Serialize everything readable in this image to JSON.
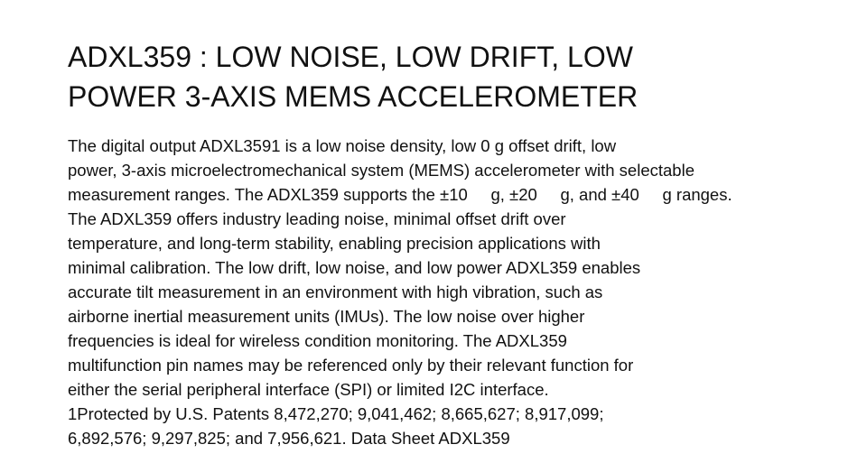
{
  "document": {
    "title_lines": [
      "ADXL359 : LOW NOISE, LOW DRIFT, LOW",
      "POWER 3-AXIS MEMS ACCELEROMETER"
    ],
    "body_lines": [
      "The digital output ADXL3591 is a low noise density, low 0 g offset drift, low",
      "power, 3-axis microelectromechanical system (MEMS) accelerometer with selectable",
      "measurement ranges. The ADXL359 supports the ±10     g, ±20     g, and ±40     g ranges.",
      "The ADXL359 offers industry leading noise, minimal offset drift over",
      "temperature, and long-term stability, enabling precision applications with",
      "minimal calibration. The low drift, low noise, and low power ADXL359 enables",
      "accurate tilt measurement in an environment with high vibration, such as",
      "airborne inertial measurement units (IMUs). The low noise over higher",
      "frequencies is ideal for wireless condition monitoring. The ADXL359",
      "multifunction pin names may be referenced only by their relevant function for",
      "either the serial peripheral interface (SPI) or limited I2C interface.",
      "1Protected by U.S. Patents 8,472,270; 9,041,462; 8,665,627; 8,917,099;",
      "6,892,576; 9,297,825; and 7,956,621. Data Sheet ADXL359"
    ]
  }
}
